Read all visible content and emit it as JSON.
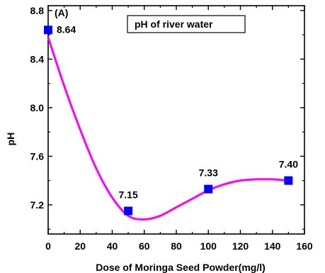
{
  "chart_data": {
    "type": "scatter",
    "panel_label": "(A)",
    "legend_text": "pH of river water",
    "xlabel": "Dose of Moringa Seed Powder(mg/l)",
    "ylabel": "pH",
    "xlim": [
      0,
      160
    ],
    "ylim": [
      6.96,
      8.84
    ],
    "x_ticks": [
      "0",
      "20",
      "40",
      "60",
      "80",
      "100",
      "120",
      "140",
      "160"
    ],
    "y_ticks": [
      "7.2",
      "7.6",
      "8.0",
      "8.4",
      "8.8"
    ],
    "x": [
      0,
      50,
      100,
      150
    ],
    "y": [
      8.64,
      7.15,
      7.33,
      7.4
    ],
    "point_labels": [
      "8.64",
      "7.15",
      "7.33",
      "7.40"
    ],
    "fit_curve": {
      "x": [
        0,
        10,
        20,
        30,
        40,
        50,
        60,
        70,
        80,
        90,
        100,
        110,
        120,
        130,
        140,
        150
      ],
      "y": [
        8.58,
        8.18,
        7.82,
        7.5,
        7.26,
        7.11,
        7.08,
        7.11,
        7.18,
        7.25,
        7.32,
        7.37,
        7.4,
        7.41,
        7.41,
        7.4
      ]
    },
    "grid": false,
    "marker_color": "#0000ff",
    "curve_color": "#ff00ff"
  }
}
